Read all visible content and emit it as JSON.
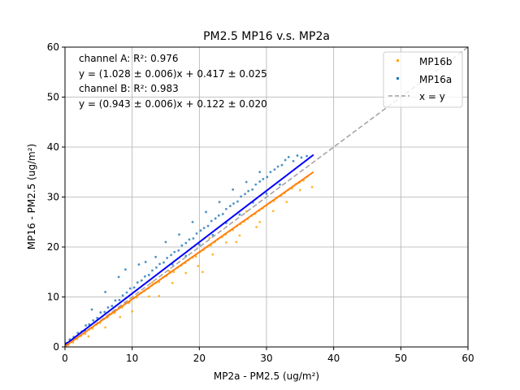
{
  "chart_data": {
    "type": "scatter",
    "title": "PM2.5 MP16 v.s. MP2a",
    "xlabel": "MP2a - PM2.5 (ug/m²)",
    "ylabel": "MP16 - PM2.5 (ug/m²)",
    "xlim": [
      0,
      60
    ],
    "ylim": [
      0,
      60
    ],
    "xticks": [
      0,
      10,
      20,
      30,
      40,
      50,
      60
    ],
    "yticks": [
      0,
      10,
      20,
      30,
      40,
      50,
      60
    ],
    "grid": true,
    "legend_position": "top-right",
    "annotations": [
      "channel A: R²: 0.976",
      "y = (1.028 ± 0.006)x + 0.417 ± 0.025",
      "channel B: R²: 0.983",
      "y = (0.943 ± 0.006)x + 0.122 ± 0.020"
    ],
    "series": [
      {
        "name": "MP16b",
        "kind": "points",
        "color": "#ffa500",
        "points": [
          [
            0.5,
            0.4
          ],
          [
            1.2,
            0.9
          ],
          [
            1.8,
            1.6
          ],
          [
            2.4,
            2.2
          ],
          [
            3.0,
            2.6
          ],
          [
            3.6,
            3.5
          ],
          [
            4.1,
            3.7
          ],
          [
            4.7,
            4.5
          ],
          [
            5.2,
            4.8
          ],
          [
            5.8,
            5.6
          ],
          [
            6.3,
            5.9
          ],
          [
            6.9,
            6.7
          ],
          [
            7.4,
            6.8
          ],
          [
            8.0,
            7.7
          ],
          [
            8.5,
            7.9
          ],
          [
            9.1,
            8.8
          ],
          [
            9.6,
            9.0
          ],
          [
            10.2,
            9.8
          ],
          [
            10.7,
            9.9
          ],
          [
            11.3,
            10.8
          ],
          [
            11.8,
            11.2
          ],
          [
            12.4,
            11.7
          ],
          [
            12.9,
            12.3
          ],
          [
            13.5,
            12.8
          ],
          [
            14.0,
            13.0
          ],
          [
            14.6,
            13.9
          ],
          [
            15.1,
            14.2
          ],
          [
            15.7,
            14.9
          ],
          [
            16.2,
            15.0
          ],
          [
            16.8,
            15.9
          ],
          [
            17.3,
            16.3
          ],
          [
            17.9,
            16.8
          ],
          [
            18.4,
            17.4
          ],
          [
            19.0,
            17.9
          ],
          [
            19.5,
            18.1
          ],
          [
            20.1,
            19.0
          ],
          [
            20.6,
            19.4
          ],
          [
            21.2,
            20.0
          ],
          [
            21.7,
            20.3
          ],
          [
            22.3,
            21.0
          ],
          [
            22.8,
            21.6
          ],
          [
            23.4,
            22.0
          ],
          [
            23.9,
            22.5
          ],
          [
            24.5,
            23.2
          ],
          [
            25.0,
            23.4
          ],
          [
            25.6,
            24.2
          ],
          [
            26.1,
            24.6
          ],
          [
            26.7,
            25.1
          ],
          [
            27.2,
            25.6
          ],
          [
            27.8,
            26.3
          ],
          [
            28.3,
            26.6
          ],
          [
            28.9,
            27.3
          ],
          [
            29.4,
            27.7
          ],
          [
            30.0,
            28.3
          ],
          [
            30.5,
            28.9
          ],
          [
            31.1,
            29.2
          ],
          [
            31.6,
            29.9
          ],
          [
            32.2,
            30.3
          ],
          [
            32.7,
            30.8
          ],
          [
            33.3,
            31.5
          ],
          [
            33.8,
            31.7
          ],
          [
            34.4,
            32.6
          ],
          [
            34.9,
            32.9
          ],
          [
            35.5,
            33.3
          ],
          [
            36.0,
            34.0
          ],
          [
            36.8,
            32.0
          ],
          [
            3.5,
            2.1
          ],
          [
            8.2,
            6.0
          ],
          [
            12.5,
            10.1
          ],
          [
            16.0,
            12.8
          ],
          [
            19.8,
            16.2
          ],
          [
            22.0,
            18.5
          ],
          [
            24.0,
            20.9
          ],
          [
            26.0,
            22.3
          ],
          [
            28.5,
            24.0
          ],
          [
            20.5,
            15.0
          ],
          [
            18.0,
            14.8
          ],
          [
            14.0,
            10.2
          ],
          [
            10.0,
            7.1
          ],
          [
            6.0,
            3.9
          ],
          [
            25.5,
            21.0
          ],
          [
            29.0,
            25.0
          ],
          [
            31.0,
            27.2
          ],
          [
            33.0,
            29.0
          ],
          [
            35.0,
            31.4
          ],
          [
            9.5,
            8.8
          ],
          [
            15.5,
            15.2
          ],
          [
            21.5,
            21.8
          ],
          [
            27.0,
            27.1
          ],
          [
            13.0,
            12.9
          ]
        ]
      },
      {
        "name": "MP16a",
        "kind": "points",
        "color": "#1f77b4",
        "points": [
          [
            0.2,
            0.8
          ],
          [
            0.7,
            1.5
          ],
          [
            1.3,
            2.0
          ],
          [
            1.9,
            2.8
          ],
          [
            2.5,
            3.1
          ],
          [
            3.1,
            4.3
          ],
          [
            3.6,
            4.5
          ],
          [
            4.2,
            5.3
          ],
          [
            4.8,
            5.8
          ],
          [
            5.3,
            6.9
          ],
          [
            5.9,
            7.0
          ],
          [
            6.4,
            7.9
          ],
          [
            7.0,
            8.2
          ],
          [
            7.5,
            9.3
          ],
          [
            8.1,
            9.4
          ],
          [
            8.6,
            10.3
          ],
          [
            9.2,
            10.9
          ],
          [
            9.7,
            11.7
          ],
          [
            10.3,
            11.9
          ],
          [
            10.8,
            12.9
          ],
          [
            11.4,
            13.3
          ],
          [
            11.9,
            14.1
          ],
          [
            12.5,
            14.4
          ],
          [
            13.0,
            15.3
          ],
          [
            13.6,
            15.9
          ],
          [
            14.1,
            16.6
          ],
          [
            14.7,
            16.9
          ],
          [
            15.2,
            17.8
          ],
          [
            15.8,
            18.4
          ],
          [
            16.3,
            19.0
          ],
          [
            16.9,
            19.3
          ],
          [
            17.4,
            20.3
          ],
          [
            18.0,
            20.8
          ],
          [
            18.5,
            21.5
          ],
          [
            19.1,
            21.7
          ],
          [
            19.6,
            22.7
          ],
          [
            20.2,
            23.3
          ],
          [
            20.7,
            23.8
          ],
          [
            21.3,
            24.2
          ],
          [
            21.8,
            25.2
          ],
          [
            22.4,
            25.7
          ],
          [
            22.9,
            26.3
          ],
          [
            23.5,
            26.6
          ],
          [
            24.0,
            27.6
          ],
          [
            24.6,
            28.2
          ],
          [
            25.1,
            28.7
          ],
          [
            25.7,
            29.1
          ],
          [
            26.2,
            30.1
          ],
          [
            26.8,
            30.6
          ],
          [
            27.3,
            31.2
          ],
          [
            27.9,
            31.5
          ],
          [
            28.4,
            32.5
          ],
          [
            29.0,
            33.1
          ],
          [
            29.5,
            33.6
          ],
          [
            30.1,
            34.0
          ],
          [
            30.6,
            35.0
          ],
          [
            31.2,
            35.5
          ],
          [
            31.7,
            36.1
          ],
          [
            32.3,
            36.4
          ],
          [
            32.8,
            37.4
          ],
          [
            33.3,
            38.0
          ],
          [
            34.0,
            37.2
          ],
          [
            34.6,
            38.3
          ],
          [
            35.2,
            37.9
          ],
          [
            36.0,
            38.2
          ],
          [
            4.0,
            7.5
          ],
          [
            6.0,
            11.0
          ],
          [
            9.0,
            15.5
          ],
          [
            11.0,
            16.5
          ],
          [
            13.5,
            18.0
          ],
          [
            15.0,
            21.0
          ],
          [
            17.0,
            22.5
          ],
          [
            19.0,
            25.0
          ],
          [
            21.0,
            27.0
          ],
          [
            23.0,
            29.0
          ],
          [
            25.0,
            31.5
          ],
          [
            27.0,
            33.0
          ],
          [
            29.0,
            35.0
          ],
          [
            8.0,
            14.0
          ],
          [
            12.0,
            17.0
          ],
          [
            16.0,
            16.5
          ],
          [
            18.0,
            18.2
          ],
          [
            20.0,
            20.5
          ],
          [
            22.0,
            22.4
          ],
          [
            24.0,
            24.8
          ],
          [
            26.0,
            26.5
          ],
          [
            28.0,
            28.9
          ],
          [
            30.0,
            30.7
          ],
          [
            32.0,
            32.5
          ],
          [
            3.0,
            3.2
          ]
        ]
      },
      {
        "name": "x = y",
        "kind": "line",
        "color": "#a0a0a0",
        "dashed": true,
        "x": [
          0,
          60
        ],
        "y": [
          0,
          60
        ]
      },
      {
        "name": "",
        "kind": "line",
        "color": "#0000ff",
        "x": [
          0,
          37
        ],
        "y": [
          0.417,
          38.453
        ]
      },
      {
        "name": "",
        "kind": "line",
        "color": "#ff7f0e",
        "x": [
          0,
          37
        ],
        "y": [
          0.122,
          35.013
        ]
      }
    ]
  }
}
